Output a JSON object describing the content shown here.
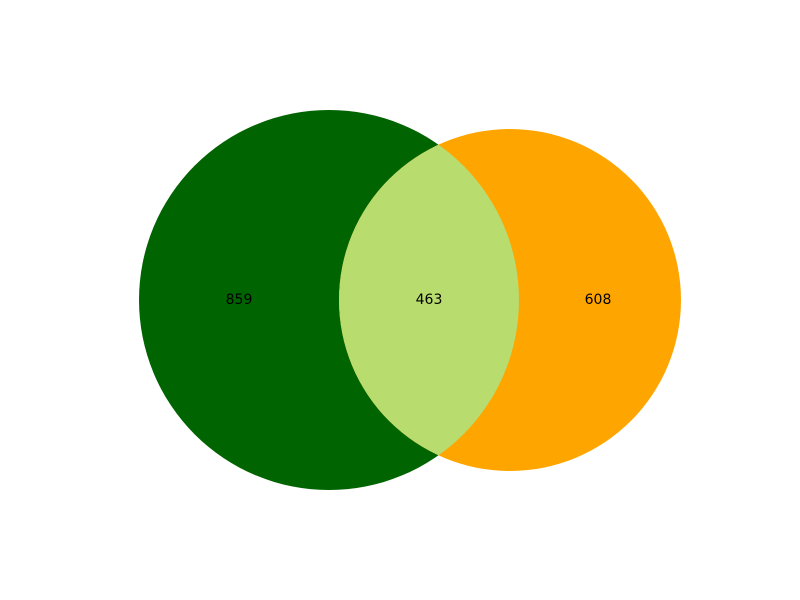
{
  "chart_data": {
    "type": "venn",
    "sets": [
      {
        "name": "",
        "only": 859,
        "color": "#006400"
      },
      {
        "name": "",
        "only": 608,
        "color": "#FFA500"
      }
    ],
    "intersection": {
      "value": 463,
      "color": "#B8DC6E"
    },
    "labels": {
      "left_only": "859",
      "intersection": "463",
      "right_only": "608"
    },
    "title": "",
    "legend": false,
    "grid": false
  }
}
